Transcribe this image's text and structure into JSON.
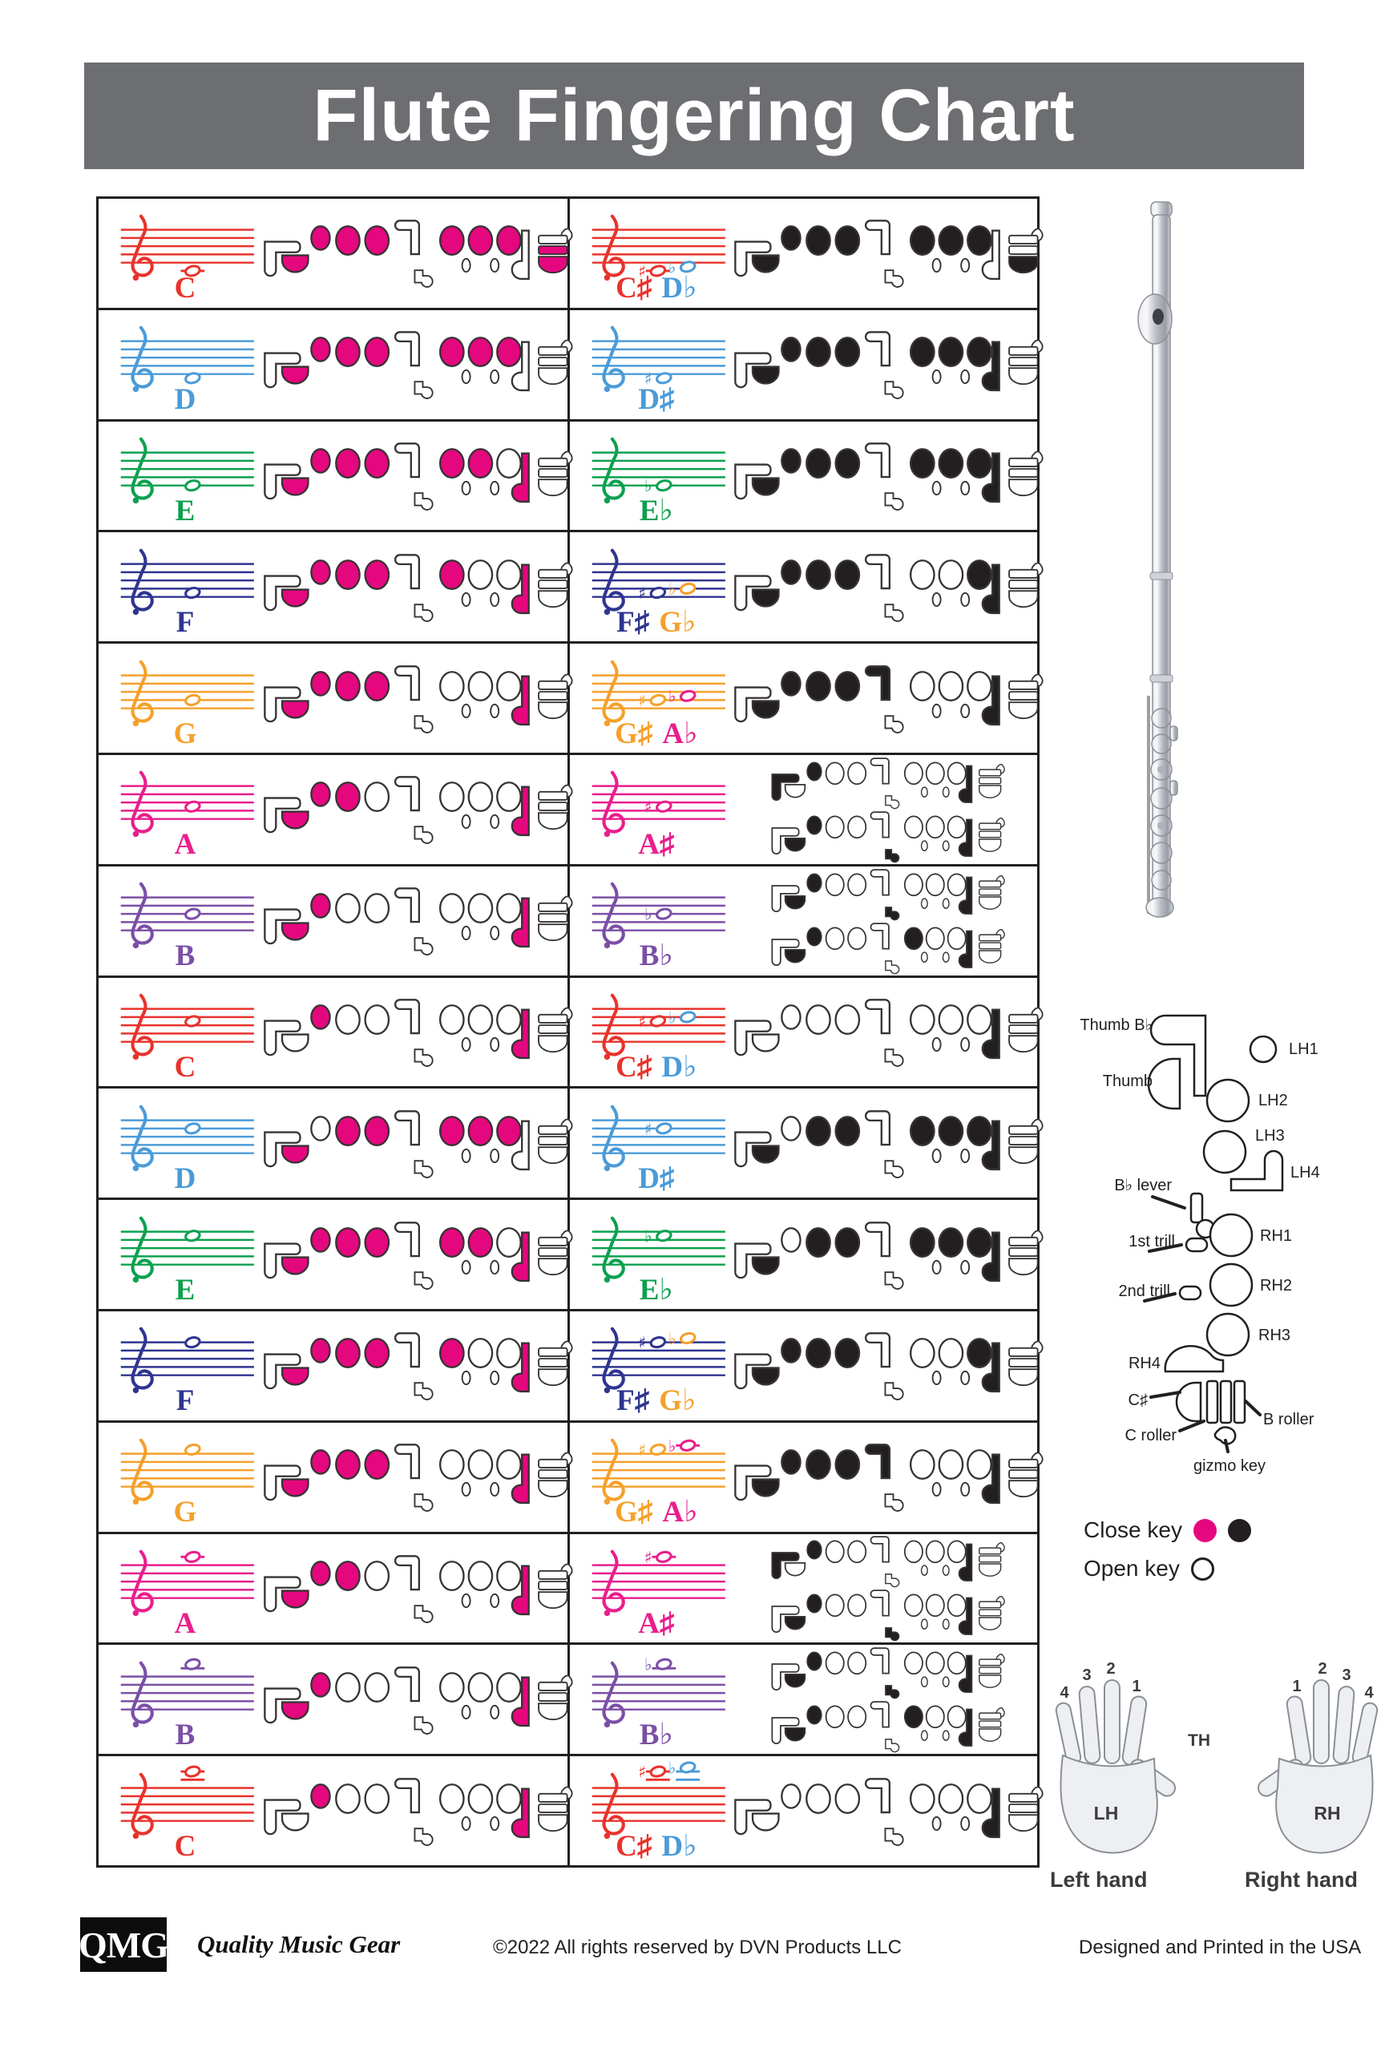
{
  "title": "Flute Fingering Chart",
  "palette": {
    "C": "#E8332C",
    "D": "#4B9BD8",
    "E": "#0CA04F",
    "F": "#2F3590",
    "G": "#F5A02B",
    "A": "#E91E8C",
    "B": "#7B4FA6",
    "pink": "#E5077E",
    "black": "#231F20",
    "title_bar": "#6D6E71"
  },
  "rows": [
    {
      "left": {
        "staff": "C",
        "notes": [
          {
            "p": -2
          }
        ],
        "labels": [
          {
            "t": "C",
            "c": "C"
          }
        ],
        "ink": "pink",
        "fingerings": [
          [
            "th",
            "l1",
            "l2",
            "l3",
            "r1",
            "r2",
            "r3",
            "cr",
            "cs"
          ]
        ]
      },
      "right": {
        "staff": "C",
        "notes": [
          {
            "p": -2,
            "a": "♯",
            "c": "C"
          },
          {
            "p": -1,
            "a": "♭",
            "c": "D"
          }
        ],
        "labels": [
          {
            "t": "C♯",
            "c": "C"
          },
          {
            "t": "D♭",
            "c": "D"
          }
        ],
        "ink": "black",
        "fingerings": [
          [
            "th",
            "l1",
            "l2",
            "l3",
            "r1",
            "r2",
            "r3",
            "cs"
          ]
        ]
      }
    },
    {
      "left": {
        "staff": "D",
        "notes": [
          {
            "p": -1
          }
        ],
        "labels": [
          {
            "t": "D",
            "c": "D"
          }
        ],
        "ink": "pink",
        "fingerings": [
          [
            "th",
            "l1",
            "l2",
            "l3",
            "r1",
            "r2",
            "r3"
          ]
        ]
      },
      "right": {
        "staff": "D",
        "notes": [
          {
            "p": -1,
            "a": "♯",
            "c": "D"
          }
        ],
        "labels": [
          {
            "t": "D♯",
            "c": "D"
          }
        ],
        "ink": "black",
        "fingerings": [
          [
            "th",
            "l1",
            "l2",
            "l3",
            "r1",
            "r2",
            "r3",
            "r4"
          ]
        ]
      }
    },
    {
      "left": {
        "staff": "E",
        "notes": [
          {
            "p": 0
          }
        ],
        "labels": [
          {
            "t": "E",
            "c": "E"
          }
        ],
        "ink": "pink",
        "fingerings": [
          [
            "th",
            "l1",
            "l2",
            "l3",
            "r1",
            "r2",
            "r4"
          ]
        ]
      },
      "right": {
        "staff": "E",
        "notes": [
          {
            "p": 0,
            "a": "♭",
            "c": "E"
          }
        ],
        "labels": [
          {
            "t": "E♭",
            "c": "E"
          }
        ],
        "ink": "black",
        "fingerings": [
          [
            "th",
            "l1",
            "l2",
            "l3",
            "r1",
            "r2",
            "r3",
            "r4"
          ]
        ]
      }
    },
    {
      "left": {
        "staff": "F",
        "notes": [
          {
            "p": 1
          }
        ],
        "labels": [
          {
            "t": "F",
            "c": "F"
          }
        ],
        "ink": "pink",
        "fingerings": [
          [
            "th",
            "l1",
            "l2",
            "l3",
            "r1",
            "r4"
          ]
        ]
      },
      "right": {
        "staff": "F",
        "notes": [
          {
            "p": 1,
            "a": "♯",
            "c": "F"
          },
          {
            "p": 2,
            "a": "♭",
            "c": "G"
          }
        ],
        "labels": [
          {
            "t": "F♯",
            "c": "F"
          },
          {
            "t": "G♭",
            "c": "G"
          }
        ],
        "ink": "black",
        "fingerings": [
          [
            "th",
            "l1",
            "l2",
            "l3",
            "r3",
            "r4"
          ]
        ]
      }
    },
    {
      "left": {
        "staff": "G",
        "notes": [
          {
            "p": 2
          }
        ],
        "labels": [
          {
            "t": "G",
            "c": "G"
          }
        ],
        "ink": "pink",
        "fingerings": [
          [
            "th",
            "l1",
            "l2",
            "l3",
            "r4"
          ]
        ]
      },
      "right": {
        "staff": "G",
        "notes": [
          {
            "p": 2,
            "a": "♯",
            "c": "G"
          },
          {
            "p": 3,
            "a": "♭",
            "c": "A"
          }
        ],
        "labels": [
          {
            "t": "G♯",
            "c": "G"
          },
          {
            "t": "A♭",
            "c": "A"
          }
        ],
        "ink": "black",
        "fingerings": [
          [
            "th",
            "l1",
            "l2",
            "l3",
            "l4",
            "r4"
          ]
        ]
      }
    },
    {
      "left": {
        "staff": "A",
        "notes": [
          {
            "p": 3
          }
        ],
        "labels": [
          {
            "t": "A",
            "c": "A"
          }
        ],
        "ink": "pink",
        "fingerings": [
          [
            "th",
            "l1",
            "l2",
            "r4"
          ]
        ]
      },
      "right": {
        "staff": "A",
        "notes": [
          {
            "p": 3,
            "a": "♯",
            "c": "A"
          }
        ],
        "labels": [
          {
            "t": "A♯",
            "c": "A"
          }
        ],
        "ink": "black",
        "fingerings": [
          [
            "tb",
            "l1",
            "r4"
          ],
          [
            "th",
            "l1",
            "bl",
            "r4"
          ]
        ]
      }
    },
    {
      "left": {
        "staff": "B",
        "notes": [
          {
            "p": 4
          }
        ],
        "labels": [
          {
            "t": "B",
            "c": "B"
          }
        ],
        "ink": "pink",
        "fingerings": [
          [
            "th",
            "l1",
            "r4"
          ]
        ]
      },
      "right": {
        "staff": "B",
        "notes": [
          {
            "p": 4,
            "a": "♭",
            "c": "B"
          }
        ],
        "labels": [
          {
            "t": "B♭",
            "c": "B"
          }
        ],
        "ink": "black",
        "fingerings": [
          [
            "th",
            "l1",
            "bl",
            "r4"
          ],
          [
            "th",
            "l1",
            "r1",
            "r4"
          ]
        ]
      }
    },
    {
      "left": {
        "staff": "C",
        "notes": [
          {
            "p": 5
          }
        ],
        "labels": [
          {
            "t": "C",
            "c": "C"
          }
        ],
        "ink": "pink",
        "fingerings": [
          [
            "l1",
            "r4"
          ]
        ]
      },
      "right": {
        "staff": "C",
        "notes": [
          {
            "p": 5,
            "a": "♯",
            "c": "C"
          },
          {
            "p": 6,
            "a": "♭",
            "c": "D"
          }
        ],
        "labels": [
          {
            "t": "C♯",
            "c": "C"
          },
          {
            "t": "D♭",
            "c": "D"
          }
        ],
        "ink": "black",
        "fingerings": [
          [
            "r4"
          ]
        ]
      }
    },
    {
      "left": {
        "staff": "D",
        "notes": [
          {
            "p": 6
          }
        ],
        "labels": [
          {
            "t": "D",
            "c": "D"
          }
        ],
        "ink": "pink",
        "fingerings": [
          [
            "th",
            "l2",
            "l3",
            "r1",
            "r2",
            "r3"
          ]
        ]
      },
      "right": {
        "staff": "D",
        "notes": [
          {
            "p": 6,
            "a": "♯",
            "c": "D"
          }
        ],
        "labels": [
          {
            "t": "D♯",
            "c": "D"
          }
        ],
        "ink": "black",
        "fingerings": [
          [
            "th",
            "l2",
            "l3",
            "r1",
            "r2",
            "r3",
            "r4"
          ]
        ]
      }
    },
    {
      "left": {
        "staff": "E",
        "notes": [
          {
            "p": 7
          }
        ],
        "labels": [
          {
            "t": "E",
            "c": "E"
          }
        ],
        "ink": "pink",
        "fingerings": [
          [
            "th",
            "l1",
            "l2",
            "l3",
            "r1",
            "r2",
            "r4"
          ]
        ]
      },
      "right": {
        "staff": "E",
        "notes": [
          {
            "p": 7,
            "a": "♭",
            "c": "E"
          }
        ],
        "labels": [
          {
            "t": "E♭",
            "c": "E"
          }
        ],
        "ink": "black",
        "fingerings": [
          [
            "th",
            "l2",
            "l3",
            "r1",
            "r2",
            "r3",
            "r4"
          ]
        ]
      }
    },
    {
      "left": {
        "staff": "F",
        "notes": [
          {
            "p": 8
          }
        ],
        "labels": [
          {
            "t": "F",
            "c": "F"
          }
        ],
        "ink": "pink",
        "fingerings": [
          [
            "th",
            "l1",
            "l2",
            "l3",
            "r1",
            "r4"
          ]
        ]
      },
      "right": {
        "staff": "F",
        "notes": [
          {
            "p": 8,
            "a": "♯",
            "c": "F"
          },
          {
            "p": 9,
            "a": "♭",
            "c": "G"
          }
        ],
        "labels": [
          {
            "t": "F♯",
            "c": "F"
          },
          {
            "t": "G♭",
            "c": "G"
          }
        ],
        "ink": "black",
        "fingerings": [
          [
            "th",
            "l1",
            "l2",
            "l3",
            "r3",
            "r4"
          ]
        ]
      }
    },
    {
      "left": {
        "staff": "G",
        "notes": [
          {
            "p": 9
          }
        ],
        "labels": [
          {
            "t": "G",
            "c": "G"
          }
        ],
        "ink": "pink",
        "fingerings": [
          [
            "th",
            "l1",
            "l2",
            "l3",
            "r4"
          ]
        ]
      },
      "right": {
        "staff": "G",
        "notes": [
          {
            "p": 9,
            "a": "♯",
            "c": "G"
          },
          {
            "p": 10,
            "a": "♭",
            "c": "A"
          }
        ],
        "labels": [
          {
            "t": "G♯",
            "c": "G"
          },
          {
            "t": "A♭",
            "c": "A"
          }
        ],
        "ink": "black",
        "fingerings": [
          [
            "th",
            "l1",
            "l2",
            "l3",
            "l4",
            "r4"
          ]
        ]
      }
    },
    {
      "left": {
        "staff": "A",
        "notes": [
          {
            "p": 10
          }
        ],
        "labels": [
          {
            "t": "A",
            "c": "A"
          }
        ],
        "ink": "pink",
        "fingerings": [
          [
            "th",
            "l1",
            "l2",
            "r4"
          ]
        ]
      },
      "right": {
        "staff": "A",
        "notes": [
          {
            "p": 10,
            "a": "♯",
            "c": "A"
          }
        ],
        "labels": [
          {
            "t": "A♯",
            "c": "A"
          }
        ],
        "ink": "black",
        "fingerings": [
          [
            "tb",
            "l1",
            "r4"
          ],
          [
            "th",
            "l1",
            "bl",
            "r4"
          ]
        ]
      }
    },
    {
      "left": {
        "staff": "B",
        "notes": [
          {
            "p": 11
          }
        ],
        "labels": [
          {
            "t": "B",
            "c": "B"
          }
        ],
        "ink": "pink",
        "fingerings": [
          [
            "th",
            "l1",
            "r4"
          ]
        ]
      },
      "right": {
        "staff": "B",
        "notes": [
          {
            "p": 11,
            "a": "♭",
            "c": "B"
          }
        ],
        "labels": [
          {
            "t": "B♭",
            "c": "B"
          }
        ],
        "ink": "black",
        "fingerings": [
          [
            "th",
            "l1",
            "bl",
            "r4"
          ],
          [
            "th",
            "l1",
            "r1",
            "r4"
          ]
        ]
      }
    },
    {
      "left": {
        "staff": "C",
        "notes": [
          {
            "p": 12
          }
        ],
        "labels": [
          {
            "t": "C",
            "c": "C"
          }
        ],
        "ink": "pink",
        "fingerings": [
          [
            "l1",
            "r4"
          ]
        ]
      },
      "right": {
        "staff": "C",
        "notes": [
          {
            "p": 12,
            "a": "♯",
            "c": "C"
          },
          {
            "p": 13,
            "a": "♭",
            "c": "D"
          }
        ],
        "labels": [
          {
            "t": "C♯",
            "c": "C"
          },
          {
            "t": "D♭",
            "c": "D"
          }
        ],
        "ink": "black",
        "fingerings": [
          [
            "r4"
          ]
        ]
      }
    }
  ],
  "legend": {
    "labels": {
      "thumb_bb": "Thumb B♭",
      "thumb": "Thumb",
      "lh1": "LH1",
      "lh2": "LH2",
      "lh3": "LH3",
      "bb_lever": "B♭ lever",
      "lh4": "LH4",
      "trill1": "1st trill",
      "trill2": "2nd trill",
      "rh1": "RH1",
      "rh2": "RH2",
      "rh3": "RH3",
      "rh4": "RH4",
      "csharp": "C♯",
      "c_roller": "C roller",
      "b_roller": "B roller",
      "gizmo": "gizmo key"
    }
  },
  "key_legend": {
    "close": "Close key",
    "open": "Open key"
  },
  "hands": {
    "lh": "LH",
    "rh": "RH",
    "th": "TH",
    "left_fingers": [
      "4",
      "3",
      "2",
      "1"
    ],
    "right_fingers": [
      "1",
      "2",
      "3",
      "4"
    ],
    "left_caption": "Left hand",
    "right_caption": "Right hand"
  },
  "footer": {
    "logo": "QMG",
    "tagline": "Quality Music Gear",
    "copyright": "©2022 All rights reserved by DVN Products LLC",
    "printed": "Designed and Printed in the USA"
  }
}
